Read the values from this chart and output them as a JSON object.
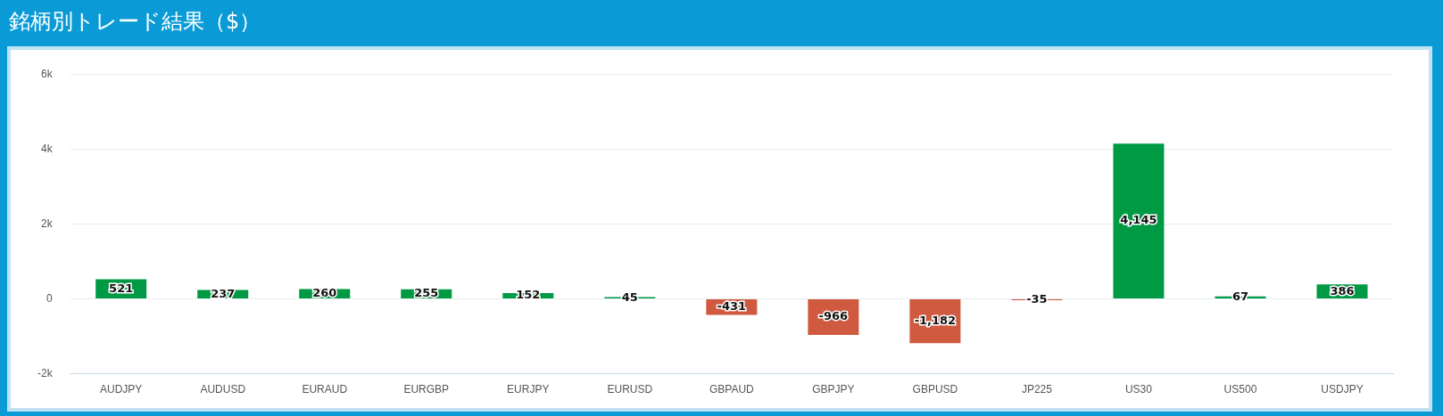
{
  "chart_data": {
    "type": "bar",
    "title": "銘柄別トレード結果（$）",
    "categories": [
      "AUDJPY",
      "AUDUSD",
      "EURAUD",
      "EURGBP",
      "EURJPY",
      "EURUSD",
      "GBPAUD",
      "GBPJPY",
      "GBPUSD",
      "JP225",
      "US30",
      "US500",
      "USDJPY"
    ],
    "values": [
      521,
      237,
      260,
      255,
      152,
      45,
      -431,
      -966,
      -1182,
      -35,
      4145,
      67,
      386
    ],
    "colors": [
      "#009a44",
      "#009a44",
      "#009a44",
      "#009a44",
      "#009a44",
      "#009a44",
      "#d05a40",
      "#d05a40",
      "#d05a40",
      "#d05a40",
      "#009a44",
      "#009a44",
      "#009a44"
    ],
    "value_labels": [
      "521",
      "237",
      "260",
      "255",
      "152",
      "45",
      "-431",
      "-966",
      "-1,182",
      "-35",
      "4,145",
      "67",
      "386"
    ],
    "ylim": [
      -2000,
      6000
    ],
    "yticks": [
      {
        "value": -2000,
        "label": "-2k"
      },
      0,
      {
        "value": 2000,
        "label": "2k"
      },
      {
        "value": 4000,
        "label": "4k"
      },
      {
        "value": 6000,
        "label": "6k"
      }
    ],
    "grid": "y",
    "legend": false
  }
}
